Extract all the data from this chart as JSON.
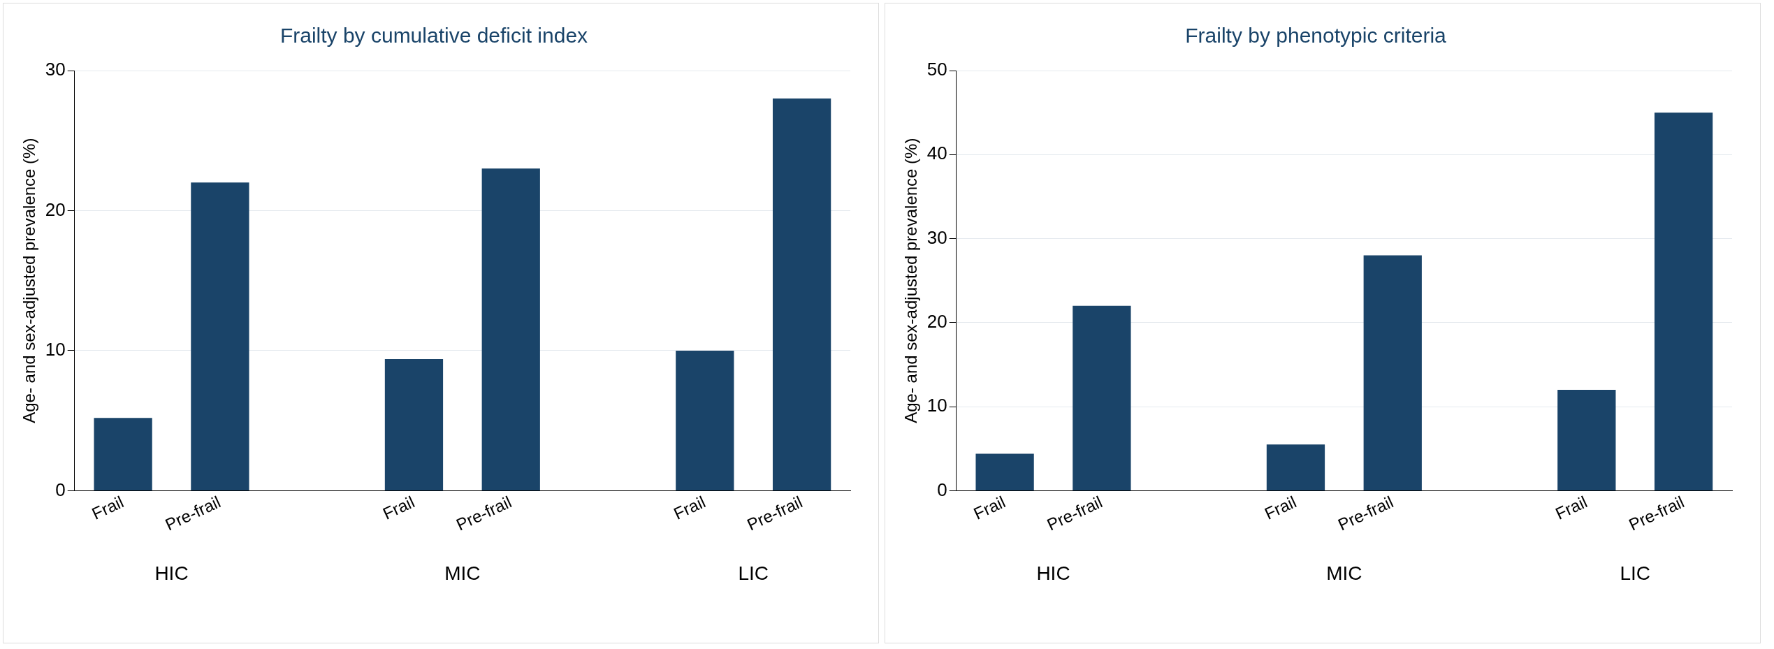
{
  "chart_data": [
    {
      "type": "bar",
      "title": "Frailty by cumulative deficit index",
      "ylabel": "Age- and sex-adjusted prevalence (%)",
      "categories": [
        "Frail",
        "Pre-frail",
        null,
        "Frail",
        "Pre-frail",
        null,
        "Frail",
        "Pre-frail"
      ],
      "values": [
        5.2,
        22,
        null,
        9.4,
        23,
        null,
        10,
        28
      ],
      "color": "#1a4469",
      "ylim": [
        0,
        30
      ],
      "yticks": [
        0,
        10,
        20,
        30
      ],
      "grid": "y",
      "annotations": [
        "HIC",
        "MIC",
        "LIC"
      ]
    },
    {
      "type": "bar",
      "title": "Frailty by phenotypic criteria",
      "ylabel": "Age- and sex-adjusted prevalence (%)",
      "categories": [
        "Frail",
        "Pre-frail",
        null,
        "Frail",
        "Pre-frail",
        null,
        "Frail",
        "Pre-frail"
      ],
      "values": [
        4.4,
        22,
        null,
        5.5,
        28,
        null,
        12,
        45
      ],
      "color": "#1a4469",
      "ylim": [
        0,
        50
      ],
      "yticks": [
        0,
        10,
        20,
        30,
        40,
        50
      ],
      "grid": "y",
      "annotations": [
        "HIC",
        "MIC",
        "LIC"
      ]
    }
  ]
}
